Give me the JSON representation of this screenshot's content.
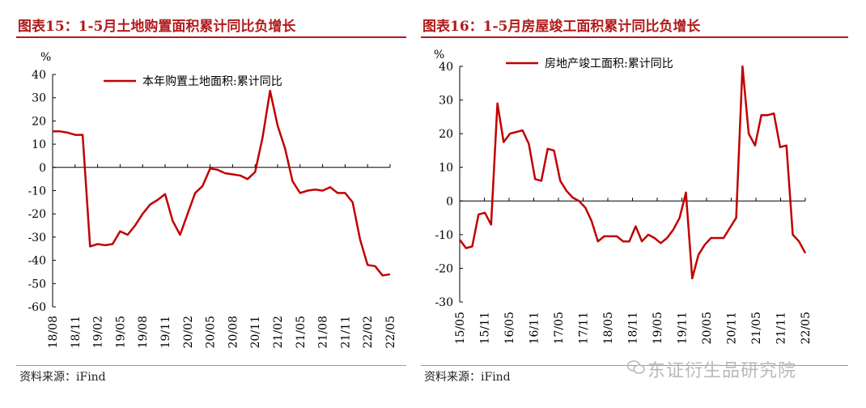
{
  "colors": {
    "accent": "#b11b1b",
    "line": "#c00000",
    "axis": "#000000",
    "watermark": "#b9b9b9"
  },
  "watermark": {
    "text": "东证衍生品研究院",
    "icon": "wechat-icon"
  },
  "chart_data": [
    {
      "type": "line",
      "title": "图表15：1-5月土地购置面积累计同比负增长",
      "unit_label": "%",
      "source": "资料来源：iFind",
      "legend": {
        "placement": "top-center"
      },
      "y_ticks": [
        "40",
        "30",
        "20",
        "10",
        "0",
        "-10",
        "-20",
        "-30",
        "-40",
        "-50",
        "-60"
      ],
      "ylim": [
        -60,
        40
      ],
      "x_ticks": [
        "18/08",
        "18/11",
        "19/02",
        "19/05",
        "19/08",
        "19/11",
        "20/02",
        "20/05",
        "20/08",
        "20/11",
        "21/02",
        "21/05",
        "21/08",
        "21/11",
        "22/02",
        "22/05"
      ],
      "series": [
        {
          "name": "本年购置土地面积:累计同比",
          "values": [
            15.5,
            15.5,
            15.0,
            14.0,
            14.0,
            -34.0,
            -33.0,
            -33.5,
            -33.0,
            -27.5,
            -29.0,
            -25.0,
            -20.0,
            -16.0,
            -14.0,
            -11.5,
            -23.0,
            -29.0,
            -20.0,
            -11.0,
            -8.0,
            -0.5,
            -1.0,
            -2.5,
            -3.0,
            -3.5,
            -5.0,
            -2.0,
            13.0,
            33.0,
            18.0,
            8.0,
            -6.0,
            -11.0,
            -10.0,
            -9.5,
            -10.0,
            -8.5,
            -11.0,
            -11.0,
            -15.0,
            -31.0,
            -42.0,
            -42.5,
            -46.5,
            -46.0
          ]
        }
      ]
    },
    {
      "type": "line",
      "title": "图表16：1-5月房屋竣工面积累计同比负增长",
      "unit_label": "%",
      "source": "资料来源：iFind",
      "legend": {
        "placement": "top-left"
      },
      "y_ticks": [
        "40",
        "30",
        "20",
        "10",
        "0",
        "-10",
        "-20",
        "-30"
      ],
      "ylim": [
        -30,
        40
      ],
      "x_ticks": [
        "15/05",
        "15/11",
        "16/05",
        "16/11",
        "17/05",
        "17/11",
        "18/05",
        "18/11",
        "19/05",
        "19/11",
        "20/05",
        "20/11",
        "21/05",
        "21/11",
        "22/05"
      ],
      "series": [
        {
          "name": "房地产竣工面积:累计同比",
          "values": [
            -11.5,
            -14.0,
            -13.5,
            -4.0,
            -3.5,
            -7.0,
            29.0,
            17.5,
            20.0,
            20.5,
            21.0,
            17.0,
            6.5,
            6.0,
            15.5,
            15.0,
            6.0,
            3.0,
            1.0,
            0.0,
            -2.0,
            -6.0,
            -12.0,
            -10.5,
            -10.5,
            -10.5,
            -12.0,
            -12.0,
            -7.5,
            -12.0,
            -10.0,
            -11.0,
            -12.5,
            -11.0,
            -8.5,
            -5.0,
            2.5,
            -23.0,
            -16.0,
            -13.0,
            -11.0,
            -11.0,
            -11.0,
            -8.0,
            -5.0,
            40.0,
            20.0,
            16.5,
            25.5,
            25.5,
            26.0,
            16.0,
            16.5,
            -10.0,
            -12.0,
            -15.5
          ]
        }
      ]
    }
  ]
}
